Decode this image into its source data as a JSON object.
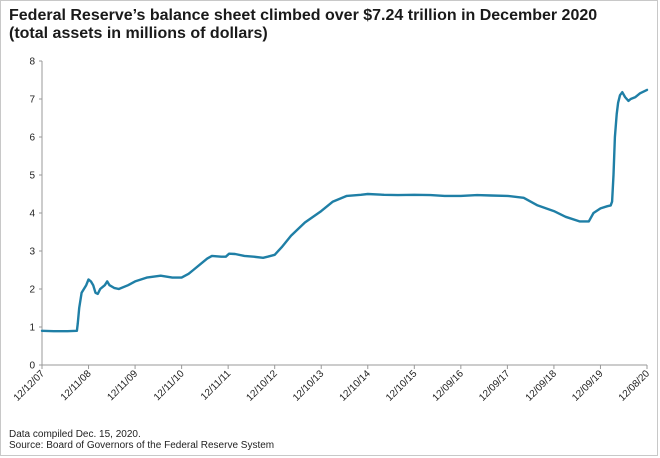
{
  "header": {
    "title": "Federal Reserve’s balance sheet climbed over $7.24 trillion in December 2020",
    "subtitle": "(total assets in millions of dollars)"
  },
  "footer": {
    "note": "Data compiled Dec. 15, 2020.",
    "source": "Source: Board of Governors of the Federal Reserve System"
  },
  "colors": {
    "line": "#1f7fa6",
    "axis": "#999999",
    "text": "#222222"
  },
  "chart_data": {
    "type": "line",
    "title": "Federal Reserve’s balance sheet climbed over $7.24 trillion in December 2020",
    "subtitle": "(total assets in millions of dollars)",
    "xlabel": "",
    "ylabel": "",
    "ylim": [
      0,
      8
    ],
    "yticks": [
      "0",
      "1",
      "2",
      "3",
      "4",
      "5",
      "6",
      "7",
      "8"
    ],
    "xticks": [
      {
        "label": "12/12/07",
        "t": 2007.95
      },
      {
        "label": "12/11/08",
        "t": 2008.95
      },
      {
        "label": "12/11/09",
        "t": 2009.95
      },
      {
        "label": "12/11/10",
        "t": 2010.95
      },
      {
        "label": "12/11/11",
        "t": 2011.95
      },
      {
        "label": "12/10/12",
        "t": 2012.95
      },
      {
        "label": "12/10/13",
        "t": 2013.95
      },
      {
        "label": "12/10/14",
        "t": 2014.95
      },
      {
        "label": "12/10/15",
        "t": 2015.95
      },
      {
        "label": "12/09/16",
        "t": 2016.95
      },
      {
        "label": "12/09/17",
        "t": 2017.95
      },
      {
        "label": "12/09/18",
        "t": 2018.95
      },
      {
        "label": "12/09/19",
        "t": 2019.95
      },
      {
        "label": "12/08/20",
        "t": 2020.95
      }
    ],
    "grid": false,
    "legend": "none",
    "series": [
      {
        "x": [
          2007.95,
          2008.2,
          2008.5,
          2008.7,
          2008.72,
          2008.75,
          2008.8,
          2008.9,
          2008.95,
          2009.0,
          2009.05,
          2009.1,
          2009.15,
          2009.2,
          2009.25,
          2009.3,
          2009.35,
          2009.4,
          2009.5,
          2009.6,
          2009.8,
          2009.95,
          2010.2,
          2010.5,
          2010.75,
          2010.95,
          2011.1,
          2011.2,
          2011.35,
          2011.5,
          2011.6,
          2011.8,
          2011.9,
          2011.97,
          2012.1,
          2012.3,
          2012.5,
          2012.7,
          2012.8,
          2012.95,
          2013.1,
          2013.3,
          2013.6,
          2013.95,
          2014.2,
          2014.5,
          2014.8,
          2014.95,
          2015.3,
          2015.6,
          2015.95,
          2016.3,
          2016.6,
          2016.95,
          2017.3,
          2017.6,
          2017.95,
          2018.3,
          2018.6,
          2018.95,
          2019.2,
          2019.5,
          2019.7,
          2019.8,
          2019.95,
          2020.1,
          2020.17,
          2020.2,
          2020.23,
          2020.26,
          2020.3,
          2020.33,
          2020.37,
          2020.42,
          2020.48,
          2020.55,
          2020.6,
          2020.7,
          2020.8,
          2020.95
        ],
        "y": [
          0.9,
          0.89,
          0.89,
          0.9,
          1.1,
          1.5,
          1.9,
          2.1,
          2.25,
          2.2,
          2.1,
          1.9,
          1.87,
          2.0,
          2.05,
          2.1,
          2.2,
          2.1,
          2.03,
          2.0,
          2.1,
          2.2,
          2.3,
          2.35,
          2.3,
          2.3,
          2.4,
          2.5,
          2.65,
          2.8,
          2.87,
          2.85,
          2.85,
          2.93,
          2.92,
          2.87,
          2.85,
          2.82,
          2.85,
          2.9,
          3.1,
          3.4,
          3.75,
          4.05,
          4.3,
          4.45,
          4.48,
          4.5,
          4.48,
          4.47,
          4.48,
          4.47,
          4.45,
          4.45,
          4.47,
          4.46,
          4.45,
          4.4,
          4.2,
          4.05,
          3.9,
          3.78,
          3.78,
          4.0,
          4.12,
          4.18,
          4.2,
          4.3,
          5.0,
          6.0,
          6.6,
          6.9,
          7.1,
          7.18,
          7.05,
          6.95,
          7.0,
          7.05,
          7.15,
          7.24
        ]
      }
    ]
  }
}
